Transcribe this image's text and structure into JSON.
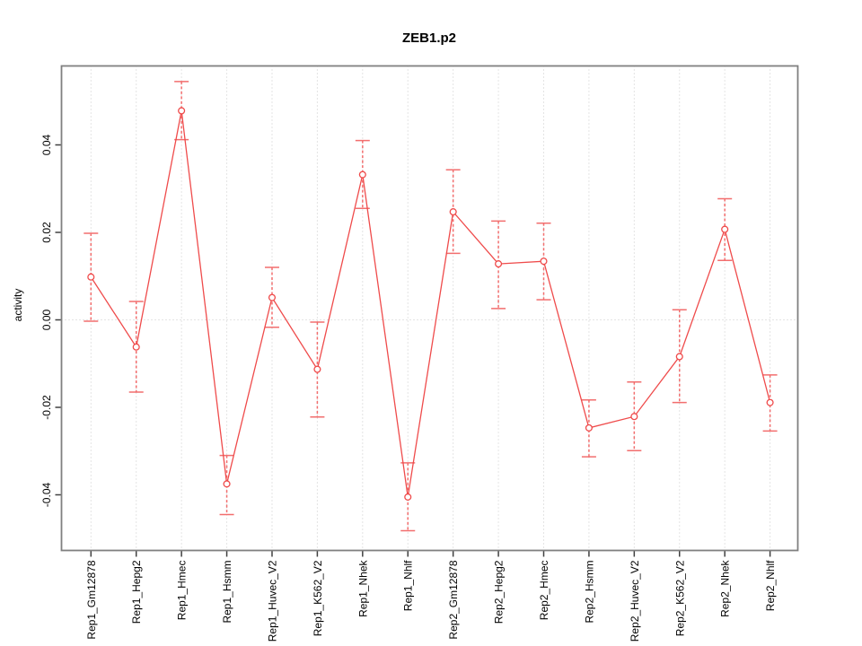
{
  "page": {
    "title": "ZEB1.p2"
  },
  "chart_data": {
    "type": "line",
    "title": "ZEB1.p2",
    "ylabel": "activity",
    "xlabel": "",
    "marker": "open-circle",
    "error_bars": true,
    "legend": "none",
    "grid": "vertical dotted gridline at each category plus dotted horizontal line at y=0",
    "categories": [
      "Rep1_Gm12878",
      "Rep1_Hepg2",
      "Rep1_Hmec",
      "Rep1_Hsmm",
      "Rep1_Huvec_V2",
      "Rep1_K562_V2",
      "Rep1_Nhek",
      "Rep1_Nhlf",
      "Rep2_Gm12878",
      "Rep2_Hepg2",
      "Rep2_Hmec",
      "Rep2_Hsmm",
      "Rep2_Huvec_V2",
      "Rep2_K562_V2",
      "Rep2_Nhek",
      "Rep2_Nhlf"
    ],
    "values": [
      0.0098,
      -0.0062,
      0.0478,
      -0.0375,
      0.0051,
      -0.0113,
      0.0332,
      -0.0405,
      0.0247,
      0.0128,
      0.0134,
      -0.0247,
      -0.0221,
      -0.0084,
      0.0207,
      -0.0189
    ],
    "ci_upper": [
      0.0198,
      0.0042,
      0.0545,
      -0.031,
      0.012,
      -0.0005,
      0.041,
      -0.0327,
      0.0343,
      0.0226,
      0.0221,
      -0.0183,
      -0.0142,
      0.0023,
      0.0277,
      -0.0126
    ],
    "ci_lower": [
      -0.0003,
      -0.0165,
      0.0412,
      -0.0445,
      -0.0017,
      -0.0222,
      0.0255,
      -0.0482,
      0.0152,
      0.0026,
      0.0046,
      -0.0313,
      -0.0299,
      -0.0189,
      0.0136,
      -0.0254
    ],
    "yticks": [
      -0.04,
      -0.02,
      0.0,
      0.02,
      0.04
    ],
    "ytick_labels": [
      "-0.04",
      "-0.02",
      "0.00",
      "0.02",
      "0.04"
    ],
    "ylim": [
      -0.052,
      0.058
    ],
    "colors": {
      "line": "#ef4b4b",
      "error_bar": "#f26e6e",
      "grid": "#c9c9c9",
      "box": "#808080",
      "tick": "#404040",
      "text": "#000000",
      "background": "#ffffff"
    }
  }
}
